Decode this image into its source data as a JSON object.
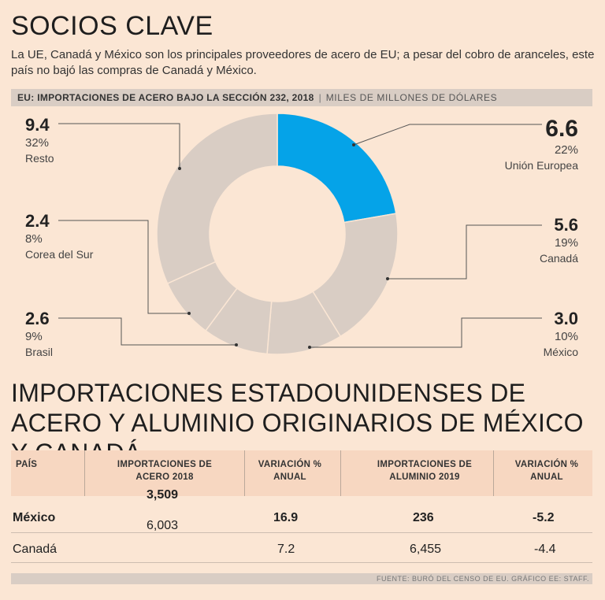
{
  "header": {
    "title": "SOCIOS CLAVE",
    "subtitle": "La UE, Canadá y México son los principales proveedores de acero de EU; a pesar del cobro de aranceles, este país no bajó las compras de Canadá y México."
  },
  "chart_data": {
    "type": "pie",
    "title": "EU: IMPORTACIONES DE ACERO BAJO LA SECCIÓN 232, 2018",
    "unit": "MILES DE MILLONES DE DÓLARES",
    "slices": [
      {
        "name": "Unión Europea",
        "value": "6.6",
        "percent": "22%",
        "num": 6.6,
        "color": "#05a3e8"
      },
      {
        "name": "Canadá",
        "value": "5.6",
        "percent": "19%",
        "num": 5.6,
        "color": "#d9cdc4"
      },
      {
        "name": "México",
        "value": "3.0",
        "percent": "10%",
        "num": 3.0,
        "color": "#d9cdc4"
      },
      {
        "name": "Brasil",
        "value": "2.6",
        "percent": "9%",
        "num": 2.6,
        "color": "#d9cdc4"
      },
      {
        "name": "Corea del Sur",
        "value": "2.4",
        "percent": "8%",
        "num": 2.4,
        "color": "#d9cdc4"
      },
      {
        "name": "Resto",
        "value": "9.4",
        "percent": "32%",
        "num": 9.4,
        "color": "#d9cdc4"
      }
    ]
  },
  "table": {
    "title": "IMPORTACIONES ESTADOUNIDENSES DE ACERO Y ALUMINIO ORIGINARIOS DE MÉXICO Y CANADÁ",
    "headers": {
      "pais": "PAÍS",
      "acero": "IMPORTACIONES DE ACERO 2018",
      "var1": "VARIACIÓN % ANUAL",
      "aluminio": "IMPORTACIONES DE ALUMINIO 2019",
      "var2": "VARIACIÓN % ANUAL"
    },
    "rows": [
      {
        "pais": "México",
        "acero": "3,509",
        "var1": "16.9",
        "aluminio": "236",
        "var2": "-5.2"
      },
      {
        "pais": "Canadá",
        "acero": "6,003",
        "var1": "7.2",
        "aluminio": "6,455",
        "var2": "-4.4"
      }
    ]
  },
  "footer": "FUENTE: BURÓ DEL CENSO DE EU. GRÁFICO EE: STAFF."
}
